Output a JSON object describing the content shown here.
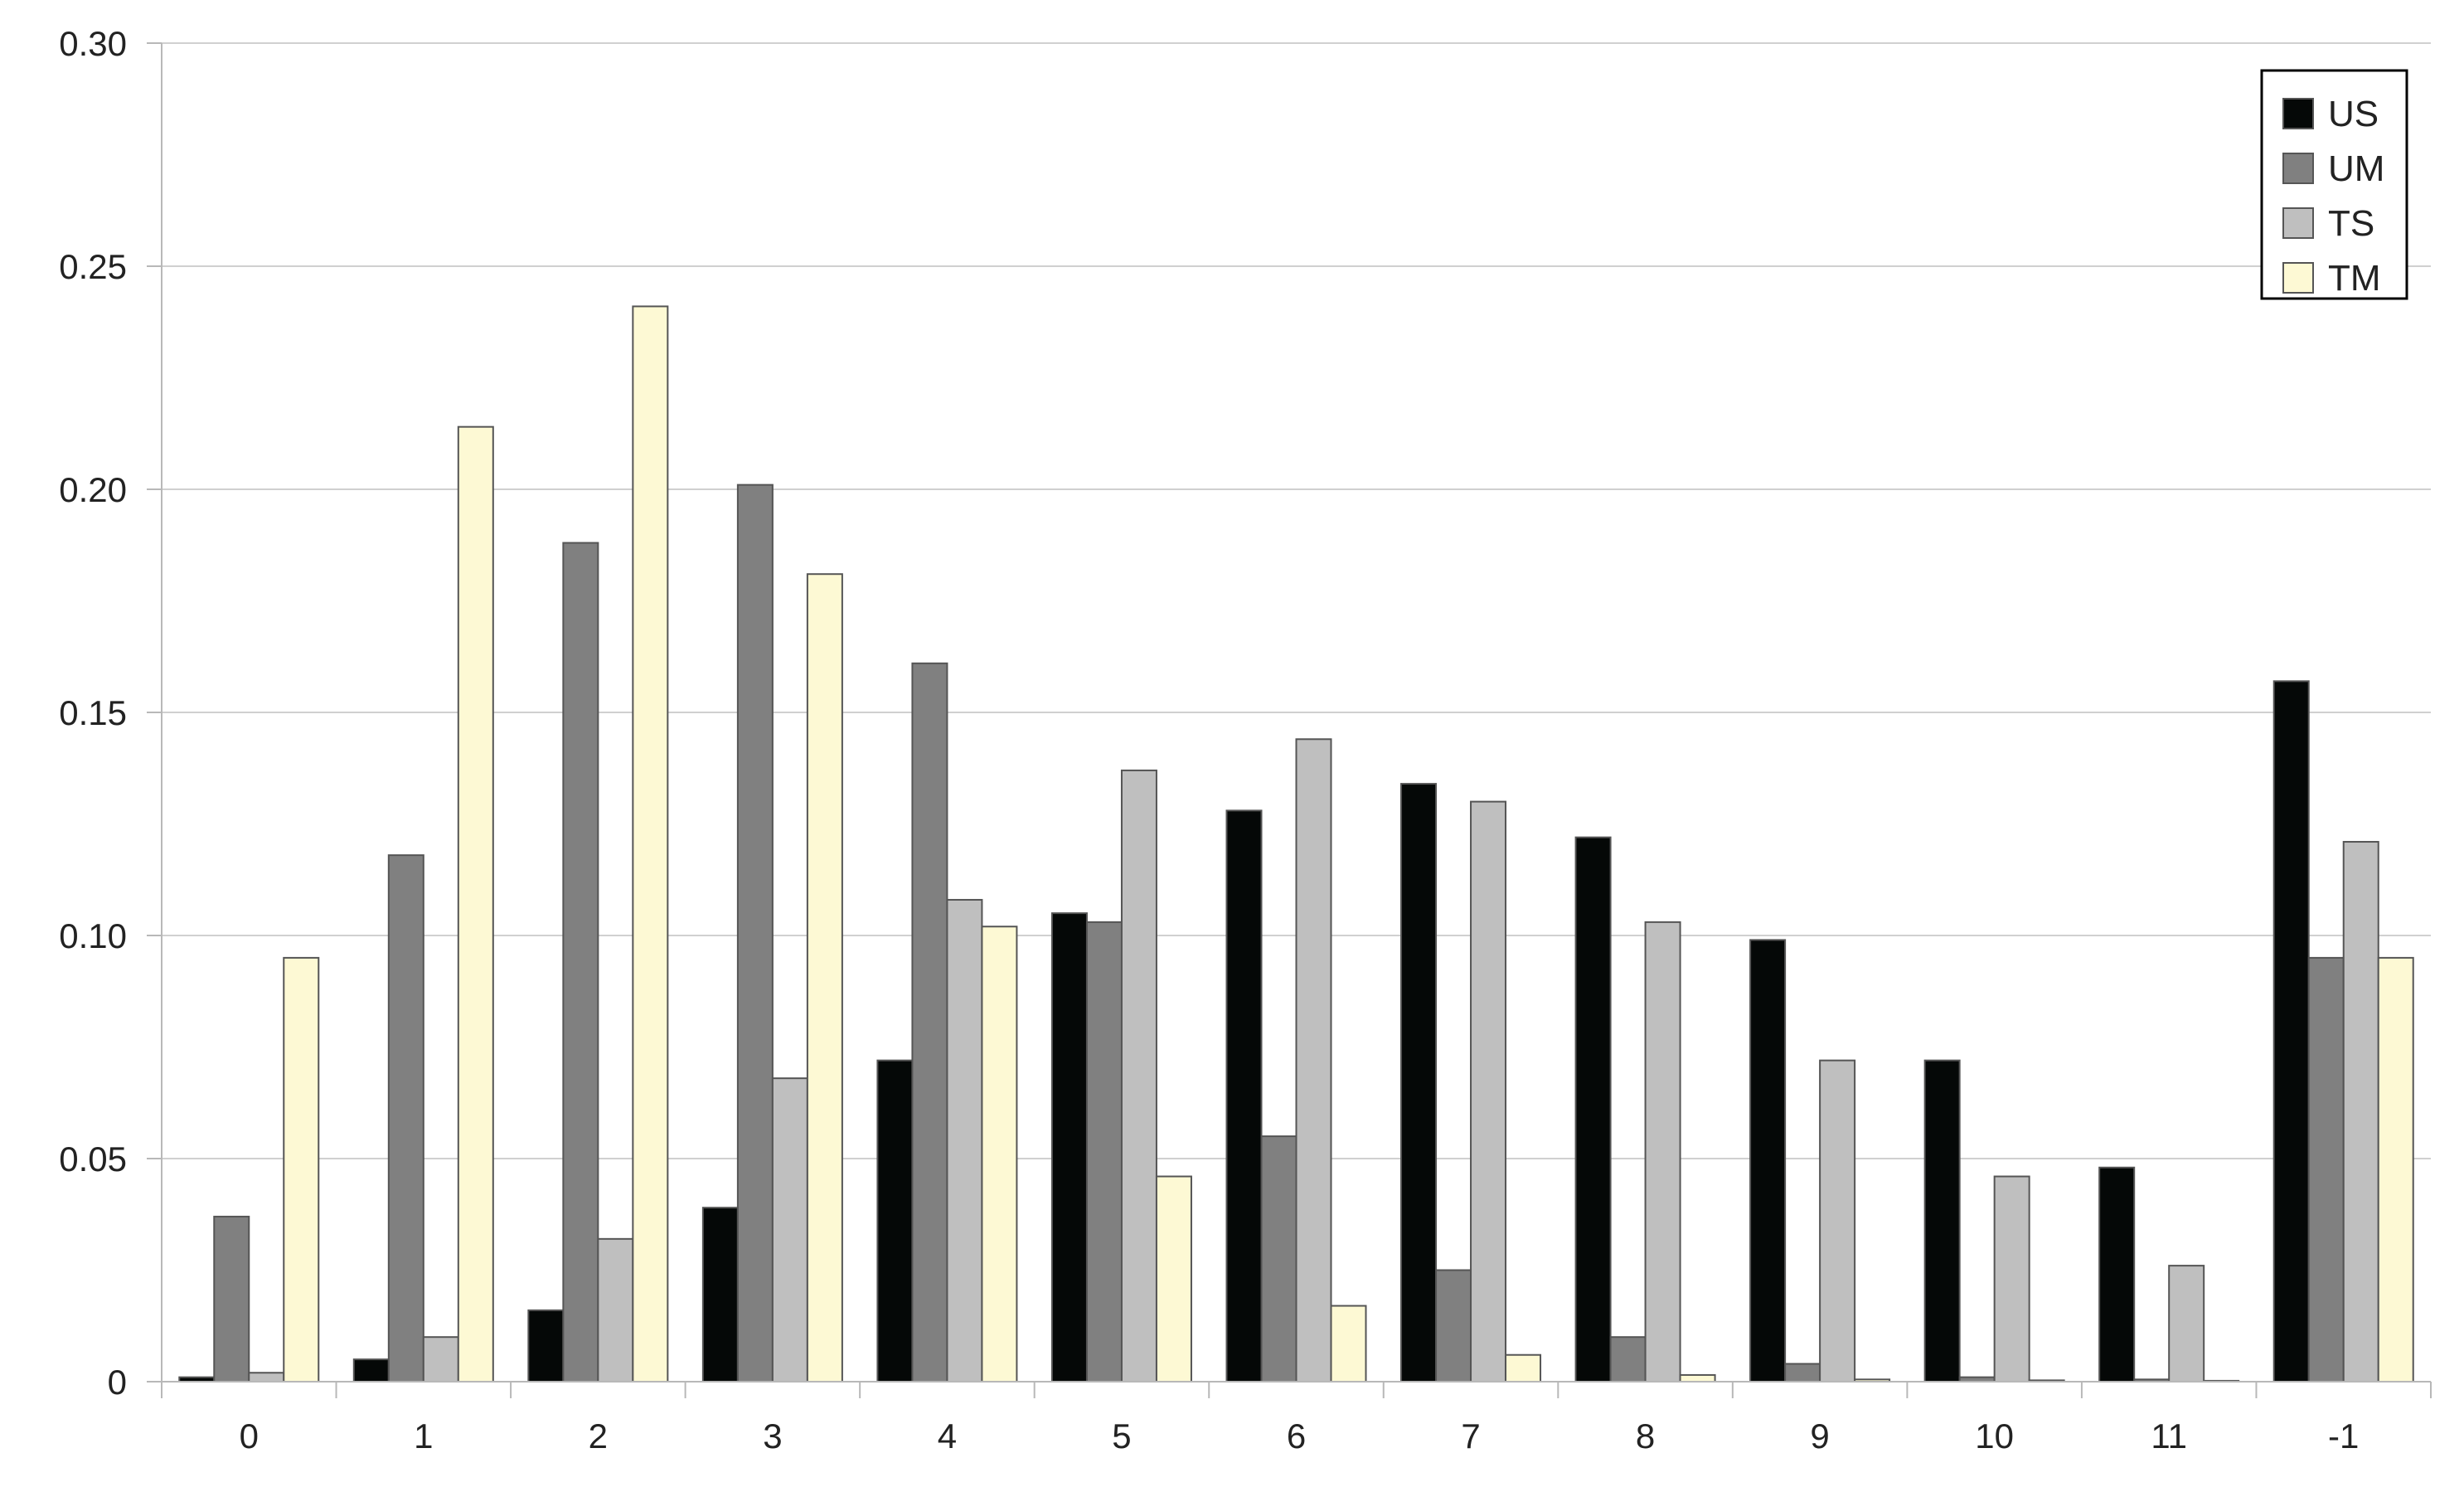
{
  "chart_data": {
    "type": "bar",
    "categories": [
      "0",
      "1",
      "2",
      "3",
      "4",
      "5",
      "6",
      "7",
      "8",
      "9",
      "10",
      "11",
      "-1"
    ],
    "series": [
      {
        "name": "US",
        "color": "#050807",
        "values": [
          0.001,
          0.005,
          0.016,
          0.039,
          0.072,
          0.105,
          0.128,
          0.134,
          0.122,
          0.099,
          0.072,
          0.048,
          0.157
        ]
      },
      {
        "name": "UM",
        "color": "#808080",
        "values": [
          0.037,
          0.118,
          0.188,
          0.201,
          0.161,
          0.103,
          0.055,
          0.025,
          0.01,
          0.004,
          0.001,
          0.0005,
          0.095
        ]
      },
      {
        "name": "TS",
        "color": "#bfbfbf",
        "values": [
          0.002,
          0.01,
          0.032,
          0.068,
          0.108,
          0.137,
          0.144,
          0.13,
          0.103,
          0.072,
          0.046,
          0.026,
          0.121
        ]
      },
      {
        "name": "TM",
        "color": "#fdf9d4",
        "values": [
          0.095,
          0.214,
          0.241,
          0.181,
          0.102,
          0.046,
          0.017,
          0.006,
          0.0015,
          0.0005,
          0.0003,
          0.0002,
          0.095
        ]
      }
    ],
    "yticks": [
      "0",
      "0.05",
      "0.10",
      "0.15",
      "0.20",
      "0.25",
      "0.30"
    ],
    "ylim": [
      0,
      0.3
    ],
    "grid": true,
    "legend_position": "top-right",
    "title": "",
    "xlabel": "",
    "ylabel": ""
  }
}
